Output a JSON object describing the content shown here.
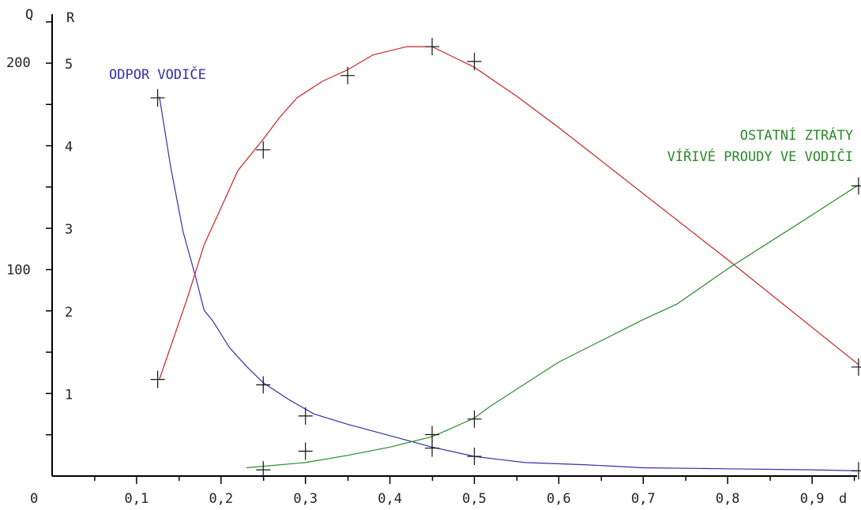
{
  "chart_data": {
    "type": "line",
    "title": "",
    "xlabel": "d",
    "ylabel_left": "Q",
    "ylabel_right": "R",
    "x_ticks": [
      {
        "value": 0,
        "label": "0"
      },
      {
        "value": 0.1,
        "label": "0,1"
      },
      {
        "value": 0.2,
        "label": "0,2"
      },
      {
        "value": 0.3,
        "label": "0,3"
      },
      {
        "value": 0.4,
        "label": "0,4"
      },
      {
        "value": 0.5,
        "label": "0,5"
      },
      {
        "value": 0.6,
        "label": "0,6"
      },
      {
        "value": 0.7,
        "label": "0,7"
      },
      {
        "value": 0.8,
        "label": "0,8"
      },
      {
        "value": 0.9,
        "label": "0,9"
      }
    ],
    "y_ticks_left": [
      {
        "value": 100,
        "label": "100"
      },
      {
        "value": 200,
        "label": "200"
      }
    ],
    "y_ticks_right": [
      {
        "value": 1,
        "label": "1"
      },
      {
        "value": 2,
        "label": "2"
      },
      {
        "value": 3,
        "label": "3"
      },
      {
        "value": 4,
        "label": "4"
      },
      {
        "value": 5,
        "label": "5"
      }
    ],
    "xlim": [
      0,
      0.96
    ],
    "ylim_left": [
      0,
      200
    ],
    "ylim_right": [
      0,
      5
    ],
    "grid": false,
    "legend": "none",
    "series": [
      {
        "name": "ODPOR VODIČE",
        "color": "#3030b0",
        "axis": "left",
        "label_text_lines": [
          "ODPOR VODIČE"
        ],
        "curve": [
          [
            0.127,
            183
          ],
          [
            0.14,
            150
          ],
          [
            0.155,
            118
          ],
          [
            0.17,
            96
          ],
          [
            0.18,
            80
          ],
          [
            0.19,
            75
          ],
          [
            0.21,
            62
          ],
          [
            0.23,
            53
          ],
          [
            0.25,
            45
          ],
          [
            0.28,
            37
          ],
          [
            0.31,
            30
          ],
          [
            0.35,
            25
          ],
          [
            0.4,
            19.5
          ],
          [
            0.45,
            14
          ],
          [
            0.5,
            9.5
          ],
          [
            0.56,
            6.5
          ],
          [
            0.63,
            5.5
          ],
          [
            0.7,
            4
          ],
          [
            0.8,
            3.5
          ],
          [
            0.9,
            3
          ],
          [
            0.955,
            2.5
          ]
        ],
        "markers": [
          [
            0.125,
            182.5
          ],
          [
            0.25,
            44
          ],
          [
            0.3,
            29
          ],
          [
            0.45,
            13.5
          ],
          [
            0.5,
            9.5
          ],
          [
            0.955,
            2.5
          ]
        ]
      },
      {
        "name": "",
        "color": "#cc2222",
        "axis": "right",
        "label_text_lines": [],
        "curve": [
          [
            0.127,
            1.17
          ],
          [
            0.16,
            2.15
          ],
          [
            0.18,
            2.8
          ],
          [
            0.2,
            3.25
          ],
          [
            0.22,
            3.7
          ],
          [
            0.25,
            4.08
          ],
          [
            0.27,
            4.35
          ],
          [
            0.29,
            4.58
          ],
          [
            0.32,
            4.78
          ],
          [
            0.35,
            4.92
          ],
          [
            0.38,
            5.1
          ],
          [
            0.42,
            5.2
          ],
          [
            0.45,
            5.2
          ],
          [
            0.47,
            5.1
          ],
          [
            0.5,
            4.95
          ],
          [
            0.55,
            4.6
          ],
          [
            0.6,
            4.22
          ],
          [
            0.7,
            3.42
          ],
          [
            0.8,
            2.62
          ],
          [
            0.9,
            1.8
          ],
          [
            0.955,
            1.35
          ]
        ],
        "markers": [
          [
            0.125,
            1.17
          ],
          [
            0.25,
            3.95
          ],
          [
            0.35,
            4.85
          ],
          [
            0.45,
            5.2
          ],
          [
            0.5,
            5.02
          ],
          [
            0.955,
            1.32
          ]
        ]
      },
      {
        "name": "OSTATNÍ ZTRÁTY VÍŘIVÉ PROUDY VE VODIČI",
        "color": "#2a8a2a",
        "axis": "left",
        "label_text_lines": [
          "OSTATNÍ ZTRÁTY",
          "VÍŘIVÉ PROUDY VE VODIČI"
        ],
        "curve": [
          [
            0.23,
            4
          ],
          [
            0.3,
            6.5
          ],
          [
            0.35,
            10
          ],
          [
            0.4,
            14
          ],
          [
            0.45,
            19
          ],
          [
            0.47,
            22.5
          ],
          [
            0.5,
            28
          ],
          [
            0.52,
            34
          ],
          [
            0.6,
            55
          ],
          [
            0.7,
            75.5
          ],
          [
            0.74,
            83
          ],
          [
            0.8,
            100
          ],
          [
            0.9,
            126
          ],
          [
            0.955,
            140.5
          ]
        ],
        "markers": [
          [
            0.25,
            3
          ],
          [
            0.3,
            12
          ],
          [
            0.45,
            20
          ],
          [
            0.5,
            27.5
          ],
          [
            0.955,
            140
          ]
        ]
      }
    ]
  }
}
